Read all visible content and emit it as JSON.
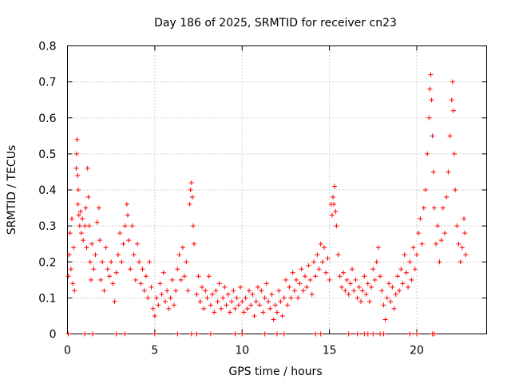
{
  "chart_data": {
    "type": "scatter",
    "title": "Day 186 of 2025, SRMTID for receiver cn23",
    "xlabel": "GPS time / hours",
    "ylabel": "SRMTID / TECUs",
    "xlim": [
      0,
      24
    ],
    "ylim": [
      0,
      0.8
    ],
    "xticks": [
      0,
      5,
      10,
      15,
      20
    ],
    "xtick_labels": [
      "0",
      "5",
      "10",
      "15",
      "20"
    ],
    "yticks": [
      0,
      0.1,
      0.2,
      0.3,
      0.4,
      0.5,
      0.6,
      0.7,
      0.8
    ],
    "ytick_labels": [
      "0",
      "0.1",
      "0.2",
      "0.3",
      "0.4",
      "0.5",
      "0.6",
      "0.7",
      "0.8"
    ],
    "grid": true,
    "marker": "+",
    "color": "#ff0000",
    "series": [
      {
        "name": "SRMTID",
        "points": [
          [
            0.05,
            0.16
          ],
          [
            0.1,
            0.22
          ],
          [
            0.15,
            0.28
          ],
          [
            0.2,
            0.18
          ],
          [
            0.25,
            0.32
          ],
          [
            0.3,
            0.14
          ],
          [
            0.35,
            0.24
          ],
          [
            0.4,
            0.12
          ],
          [
            0.5,
            0.46
          ],
          [
            0.52,
            0.5
          ],
          [
            0.55,
            0.54
          ],
          [
            0.58,
            0.44
          ],
          [
            0.6,
            0.36
          ],
          [
            0.62,
            0.4
          ],
          [
            0.65,
            0.33
          ],
          [
            0.7,
            0.3
          ],
          [
            0.75,
            0.34
          ],
          [
            0.8,
            0.28
          ],
          [
            0.85,
            0.32
          ],
          [
            0.9,
            0.26
          ],
          [
            1.0,
            0.3
          ],
          [
            1.05,
            0.35
          ],
          [
            1.1,
            0.24
          ],
          [
            1.15,
            0.46
          ],
          [
            1.2,
            0.38
          ],
          [
            1.25,
            0.3
          ],
          [
            1.3,
            0.2
          ],
          [
            1.35,
            0.15
          ],
          [
            1.4,
            0.25
          ],
          [
            1.5,
            0.18
          ],
          [
            1.6,
            0.22
          ],
          [
            1.7,
            0.31
          ],
          [
            1.8,
            0.35
          ],
          [
            1.85,
            0.26
          ],
          [
            1.9,
            0.15
          ],
          [
            2.0,
            0.2
          ],
          [
            2.1,
            0.12
          ],
          [
            2.2,
            0.24
          ],
          [
            2.3,
            0.18
          ],
          [
            2.4,
            0.16
          ],
          [
            2.5,
            0.2
          ],
          [
            2.6,
            0.14
          ],
          [
            2.7,
            0.09
          ],
          [
            2.8,
            0.17
          ],
          [
            2.9,
            0.22
          ],
          [
            3.0,
            0.28
          ],
          [
            3.1,
            0.2
          ],
          [
            3.2,
            0.25
          ],
          [
            3.3,
            0.3
          ],
          [
            3.4,
            0.36
          ],
          [
            3.45,
            0.33
          ],
          [
            3.5,
            0.26
          ],
          [
            3.6,
            0.18
          ],
          [
            3.7,
            0.3
          ],
          [
            3.8,
            0.22
          ],
          [
            3.9,
            0.15
          ],
          [
            4.0,
            0.25
          ],
          [
            4.1,
            0.2
          ],
          [
            4.2,
            0.14
          ],
          [
            4.3,
            0.18
          ],
          [
            4.4,
            0.12
          ],
          [
            4.5,
            0.16
          ],
          [
            4.6,
            0.1
          ],
          [
            4.7,
            0.2
          ],
          [
            4.8,
            0.13
          ],
          [
            4.9,
            0.07
          ],
          [
            5.0,
            0.05
          ],
          [
            5.1,
            0.1
          ],
          [
            5.2,
            0.08
          ],
          [
            5.3,
            0.14
          ],
          [
            5.4,
            0.11
          ],
          [
            5.5,
            0.17
          ],
          [
            5.6,
            0.09
          ],
          [
            5.7,
            0.12
          ],
          [
            5.8,
            0.07
          ],
          [
            5.9,
            0.1
          ],
          [
            6.0,
            0.15
          ],
          [
            6.1,
            0.08
          ],
          [
            6.2,
            0.12
          ],
          [
            6.3,
            0.18
          ],
          [
            6.4,
            0.22
          ],
          [
            6.5,
            0.15
          ],
          [
            6.6,
            0.24
          ],
          [
            6.7,
            0.16
          ],
          [
            6.8,
            0.2
          ],
          [
            6.9,
            0.12
          ],
          [
            7.0,
            0.36
          ],
          [
            7.05,
            0.4
          ],
          [
            7.1,
            0.42
          ],
          [
            7.15,
            0.38
          ],
          [
            7.2,
            0.3
          ],
          [
            7.25,
            0.25
          ],
          [
            7.4,
            0.11
          ],
          [
            7.5,
            0.16
          ],
          [
            7.6,
            0.09
          ],
          [
            7.7,
            0.13
          ],
          [
            7.8,
            0.07
          ],
          [
            7.9,
            0.12
          ],
          [
            8.0,
            0.1
          ],
          [
            8.1,
            0.16
          ],
          [
            8.2,
            0.08
          ],
          [
            8.3,
            0.11
          ],
          [
            8.4,
            0.06
          ],
          [
            8.5,
            0.12
          ],
          [
            8.6,
            0.09
          ],
          [
            8.7,
            0.14
          ],
          [
            8.8,
            0.07
          ],
          [
            8.9,
            0.1
          ],
          [
            9.0,
            0.13
          ],
          [
            9.1,
            0.08
          ],
          [
            9.2,
            0.11
          ],
          [
            9.3,
            0.06
          ],
          [
            9.4,
            0.09
          ],
          [
            9.5,
            0.12
          ],
          [
            9.6,
            0.07
          ],
          [
            9.7,
            0.1
          ],
          [
            9.8,
            0.08
          ],
          [
            9.9,
            0.13
          ],
          [
            10.0,
            0.09
          ],
          [
            10.1,
            0.06
          ],
          [
            10.2,
            0.1
          ],
          [
            10.3,
            0.07
          ],
          [
            10.4,
            0.12
          ],
          [
            10.5,
            0.08
          ],
          [
            10.6,
            0.11
          ],
          [
            10.7,
            0.05
          ],
          [
            10.8,
            0.09
          ],
          [
            10.9,
            0.13
          ],
          [
            11.0,
            0.08
          ],
          [
            11.1,
            0.12
          ],
          [
            11.2,
            0.06
          ],
          [
            11.3,
            0.1
          ],
          [
            11.4,
            0.14
          ],
          [
            11.5,
            0.09
          ],
          [
            11.6,
            0.07
          ],
          [
            11.7,
            0.11
          ],
          [
            11.8,
            0.04
          ],
          [
            11.9,
            0.08
          ],
          [
            12.0,
            0.06
          ],
          [
            12.1,
            0.12
          ],
          [
            12.2,
            0.09
          ],
          [
            12.3,
            0.05
          ],
          [
            12.4,
            0.1
          ],
          [
            12.5,
            0.15
          ],
          [
            12.6,
            0.08
          ],
          [
            12.7,
            0.13
          ],
          [
            12.8,
            0.1
          ],
          [
            12.9,
            0.17
          ],
          [
            13.0,
            0.12
          ],
          [
            13.1,
            0.15
          ],
          [
            13.2,
            0.1
          ],
          [
            13.3,
            0.14
          ],
          [
            13.4,
            0.18
          ],
          [
            13.5,
            0.12
          ],
          [
            13.6,
            0.16
          ],
          [
            13.7,
            0.13
          ],
          [
            13.8,
            0.19
          ],
          [
            13.9,
            0.15
          ],
          [
            14.0,
            0.11
          ],
          [
            14.1,
            0.2
          ],
          [
            14.2,
            0.16
          ],
          [
            14.3,
            0.22
          ],
          [
            14.4,
            0.18
          ],
          [
            14.5,
            0.25
          ],
          [
            14.6,
            0.2
          ],
          [
            14.7,
            0.24
          ],
          [
            14.8,
            0.17
          ],
          [
            14.9,
            0.21
          ],
          [
            15.0,
            0.15
          ],
          [
            15.1,
            0.36
          ],
          [
            15.15,
            0.33
          ],
          [
            15.2,
            0.38
          ],
          [
            15.25,
            0.36
          ],
          [
            15.3,
            0.41
          ],
          [
            15.35,
            0.34
          ],
          [
            15.4,
            0.3
          ],
          [
            15.5,
            0.22
          ],
          [
            15.6,
            0.16
          ],
          [
            15.7,
            0.13
          ],
          [
            15.8,
            0.17
          ],
          [
            15.9,
            0.12
          ],
          [
            16.0,
            0.15
          ],
          [
            16.1,
            0.11
          ],
          [
            16.2,
            0.14
          ],
          [
            16.3,
            0.18
          ],
          [
            16.4,
            0.12
          ],
          [
            16.5,
            0.15
          ],
          [
            16.6,
            0.1
          ],
          [
            16.7,
            0.13
          ],
          [
            16.8,
            0.09
          ],
          [
            16.9,
            0.12
          ],
          [
            17.0,
            0.16
          ],
          [
            17.1,
            0.11
          ],
          [
            17.2,
            0.14
          ],
          [
            17.3,
            0.09
          ],
          [
            17.4,
            0.13
          ],
          [
            17.5,
            0.18
          ],
          [
            17.6,
            0.15
          ],
          [
            17.7,
            0.2
          ],
          [
            17.8,
            0.24
          ],
          [
            17.9,
            0.16
          ],
          [
            18.0,
            0.12
          ],
          [
            18.1,
            0.08
          ],
          [
            18.2,
            0.04
          ],
          [
            18.3,
            0.1
          ],
          [
            18.4,
            0.14
          ],
          [
            18.5,
            0.09
          ],
          [
            18.6,
            0.13
          ],
          [
            18.7,
            0.07
          ],
          [
            18.8,
            0.11
          ],
          [
            18.9,
            0.16
          ],
          [
            19.0,
            0.12
          ],
          [
            19.1,
            0.18
          ],
          [
            19.2,
            0.14
          ],
          [
            19.3,
            0.22
          ],
          [
            19.4,
            0.17
          ],
          [
            19.5,
            0.13
          ],
          [
            19.6,
            0.2
          ],
          [
            19.7,
            0.15
          ],
          [
            19.8,
            0.24
          ],
          [
            19.9,
            0.18
          ],
          [
            20.0,
            0.22
          ],
          [
            20.1,
            0.28
          ],
          [
            20.2,
            0.32
          ],
          [
            20.3,
            0.25
          ],
          [
            20.4,
            0.35
          ],
          [
            20.5,
            0.4
          ],
          [
            20.6,
            0.5
          ],
          [
            20.7,
            0.6
          ],
          [
            20.75,
            0.68
          ],
          [
            20.8,
            0.72
          ],
          [
            20.85,
            0.65
          ],
          [
            20.9,
            0.55
          ],
          [
            20.95,
            0.45
          ],
          [
            21.0,
            0.35
          ],
          [
            21.1,
            0.25
          ],
          [
            21.2,
            0.3
          ],
          [
            21.3,
            0.2
          ],
          [
            21.4,
            0.26
          ],
          [
            21.5,
            0.35
          ],
          [
            21.6,
            0.28
          ],
          [
            21.7,
            0.38
          ],
          [
            21.8,
            0.45
          ],
          [
            21.9,
            0.55
          ],
          [
            22.0,
            0.65
          ],
          [
            22.05,
            0.7
          ],
          [
            22.1,
            0.62
          ],
          [
            22.15,
            0.5
          ],
          [
            22.2,
            0.4
          ],
          [
            22.3,
            0.3
          ],
          [
            22.4,
            0.25
          ],
          [
            22.5,
            0.2
          ],
          [
            22.6,
            0.24
          ],
          [
            22.7,
            0.32
          ],
          [
            22.75,
            0.28
          ],
          [
            22.8,
            0.22
          ]
        ]
      }
    ],
    "zero_points": [
      0.05,
      1.0,
      1.45,
      2.8,
      3.3,
      5.0,
      6.3,
      7.1,
      7.4,
      8.2,
      9.6,
      10.0,
      11.3,
      12.0,
      12.4,
      14.2,
      14.5,
      16.1,
      16.6,
      17.0,
      17.2,
      17.5,
      17.9,
      18.1,
      19.6,
      20.0,
      20.9,
      21.0
    ]
  }
}
